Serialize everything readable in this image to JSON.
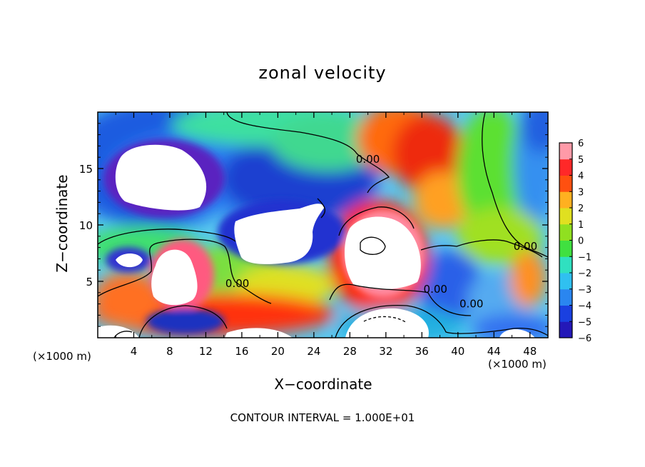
{
  "chart_data": {
    "type": "heatmap",
    "title": "zonal velocity",
    "xlabel": "X−coordinate",
    "ylabel": "Z−coordinate",
    "x_unit_left": "(×1000 m)",
    "x_unit_right": "(×1000 m)",
    "contour_note": "CONTOUR INTERVAL = 1.000E+01",
    "xlim": [
      0,
      50
    ],
    "ylim": [
      0,
      20
    ],
    "x_ticks": [
      4,
      8,
      12,
      16,
      20,
      24,
      28,
      32,
      36,
      40,
      44,
      48
    ],
    "y_ticks": [
      5,
      10,
      15
    ],
    "colorbar": {
      "min": -6,
      "max": 6,
      "ticks": [
        6,
        5,
        4,
        3,
        2,
        1,
        0,
        -1,
        -2,
        -3,
        -4,
        -5,
        -6
      ]
    },
    "contour_labels": [
      {
        "text": "0.00",
        "x": 30,
        "z": 15.5
      },
      {
        "text": "0.00",
        "x": 15.5,
        "z": 4.5
      },
      {
        "text": "0.00",
        "x": 37.5,
        "z": 4.0
      },
      {
        "text": "0.00",
        "x": 41.5,
        "z": 2.7
      },
      {
        "text": "0.00",
        "x": 47.5,
        "z": 7.8
      }
    ]
  }
}
